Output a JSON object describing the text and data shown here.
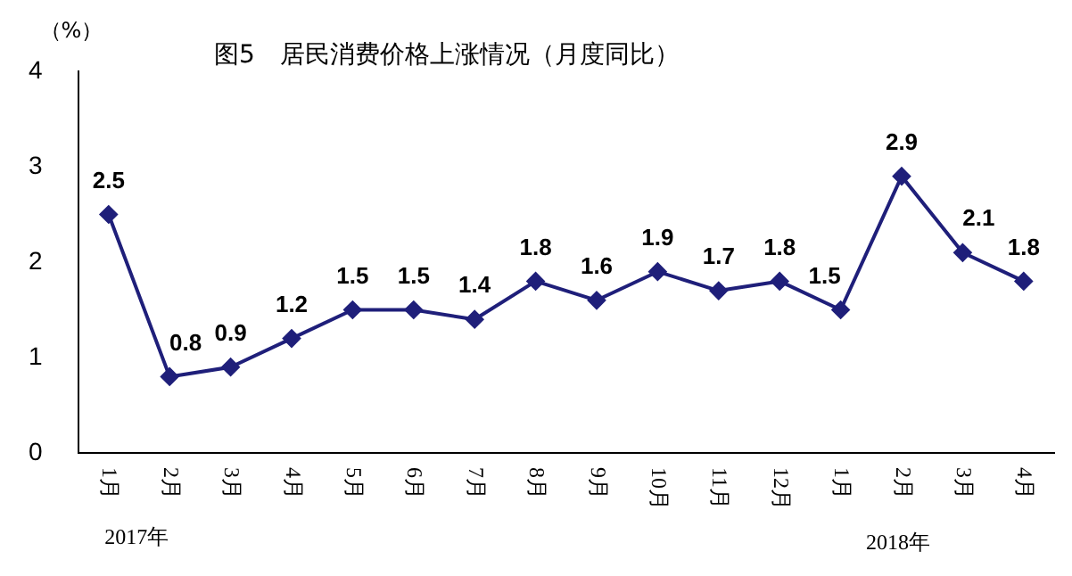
{
  "chart_data": {
    "type": "line",
    "title": "图5　居民消费价格上涨情况（月度同比）",
    "ylabel": "（%）",
    "categories": [
      "1月",
      "2月",
      "3月",
      "4月",
      "5月",
      "6月",
      "7月",
      "8月",
      "9月",
      "10月",
      "11月",
      "12月",
      "1月",
      "2月",
      "3月",
      "4月"
    ],
    "series": [
      {
        "color": "#1f1f7a",
        "values": [
          2.5,
          0.8,
          0.9,
          1.2,
          1.5,
          1.5,
          1.4,
          1.8,
          1.6,
          1.9,
          1.7,
          1.8,
          1.5,
          2.9,
          2.1,
          1.8
        ]
      }
    ],
    "ylim": [
      0,
      4
    ],
    "yticks": [
      0,
      1,
      2,
      3,
      4
    ],
    "grid": false,
    "legend": false,
    "marker": "diamond",
    "line_style": "solid",
    "data_labels": true,
    "annotations": [
      "2017年",
      "2018年"
    ]
  }
}
